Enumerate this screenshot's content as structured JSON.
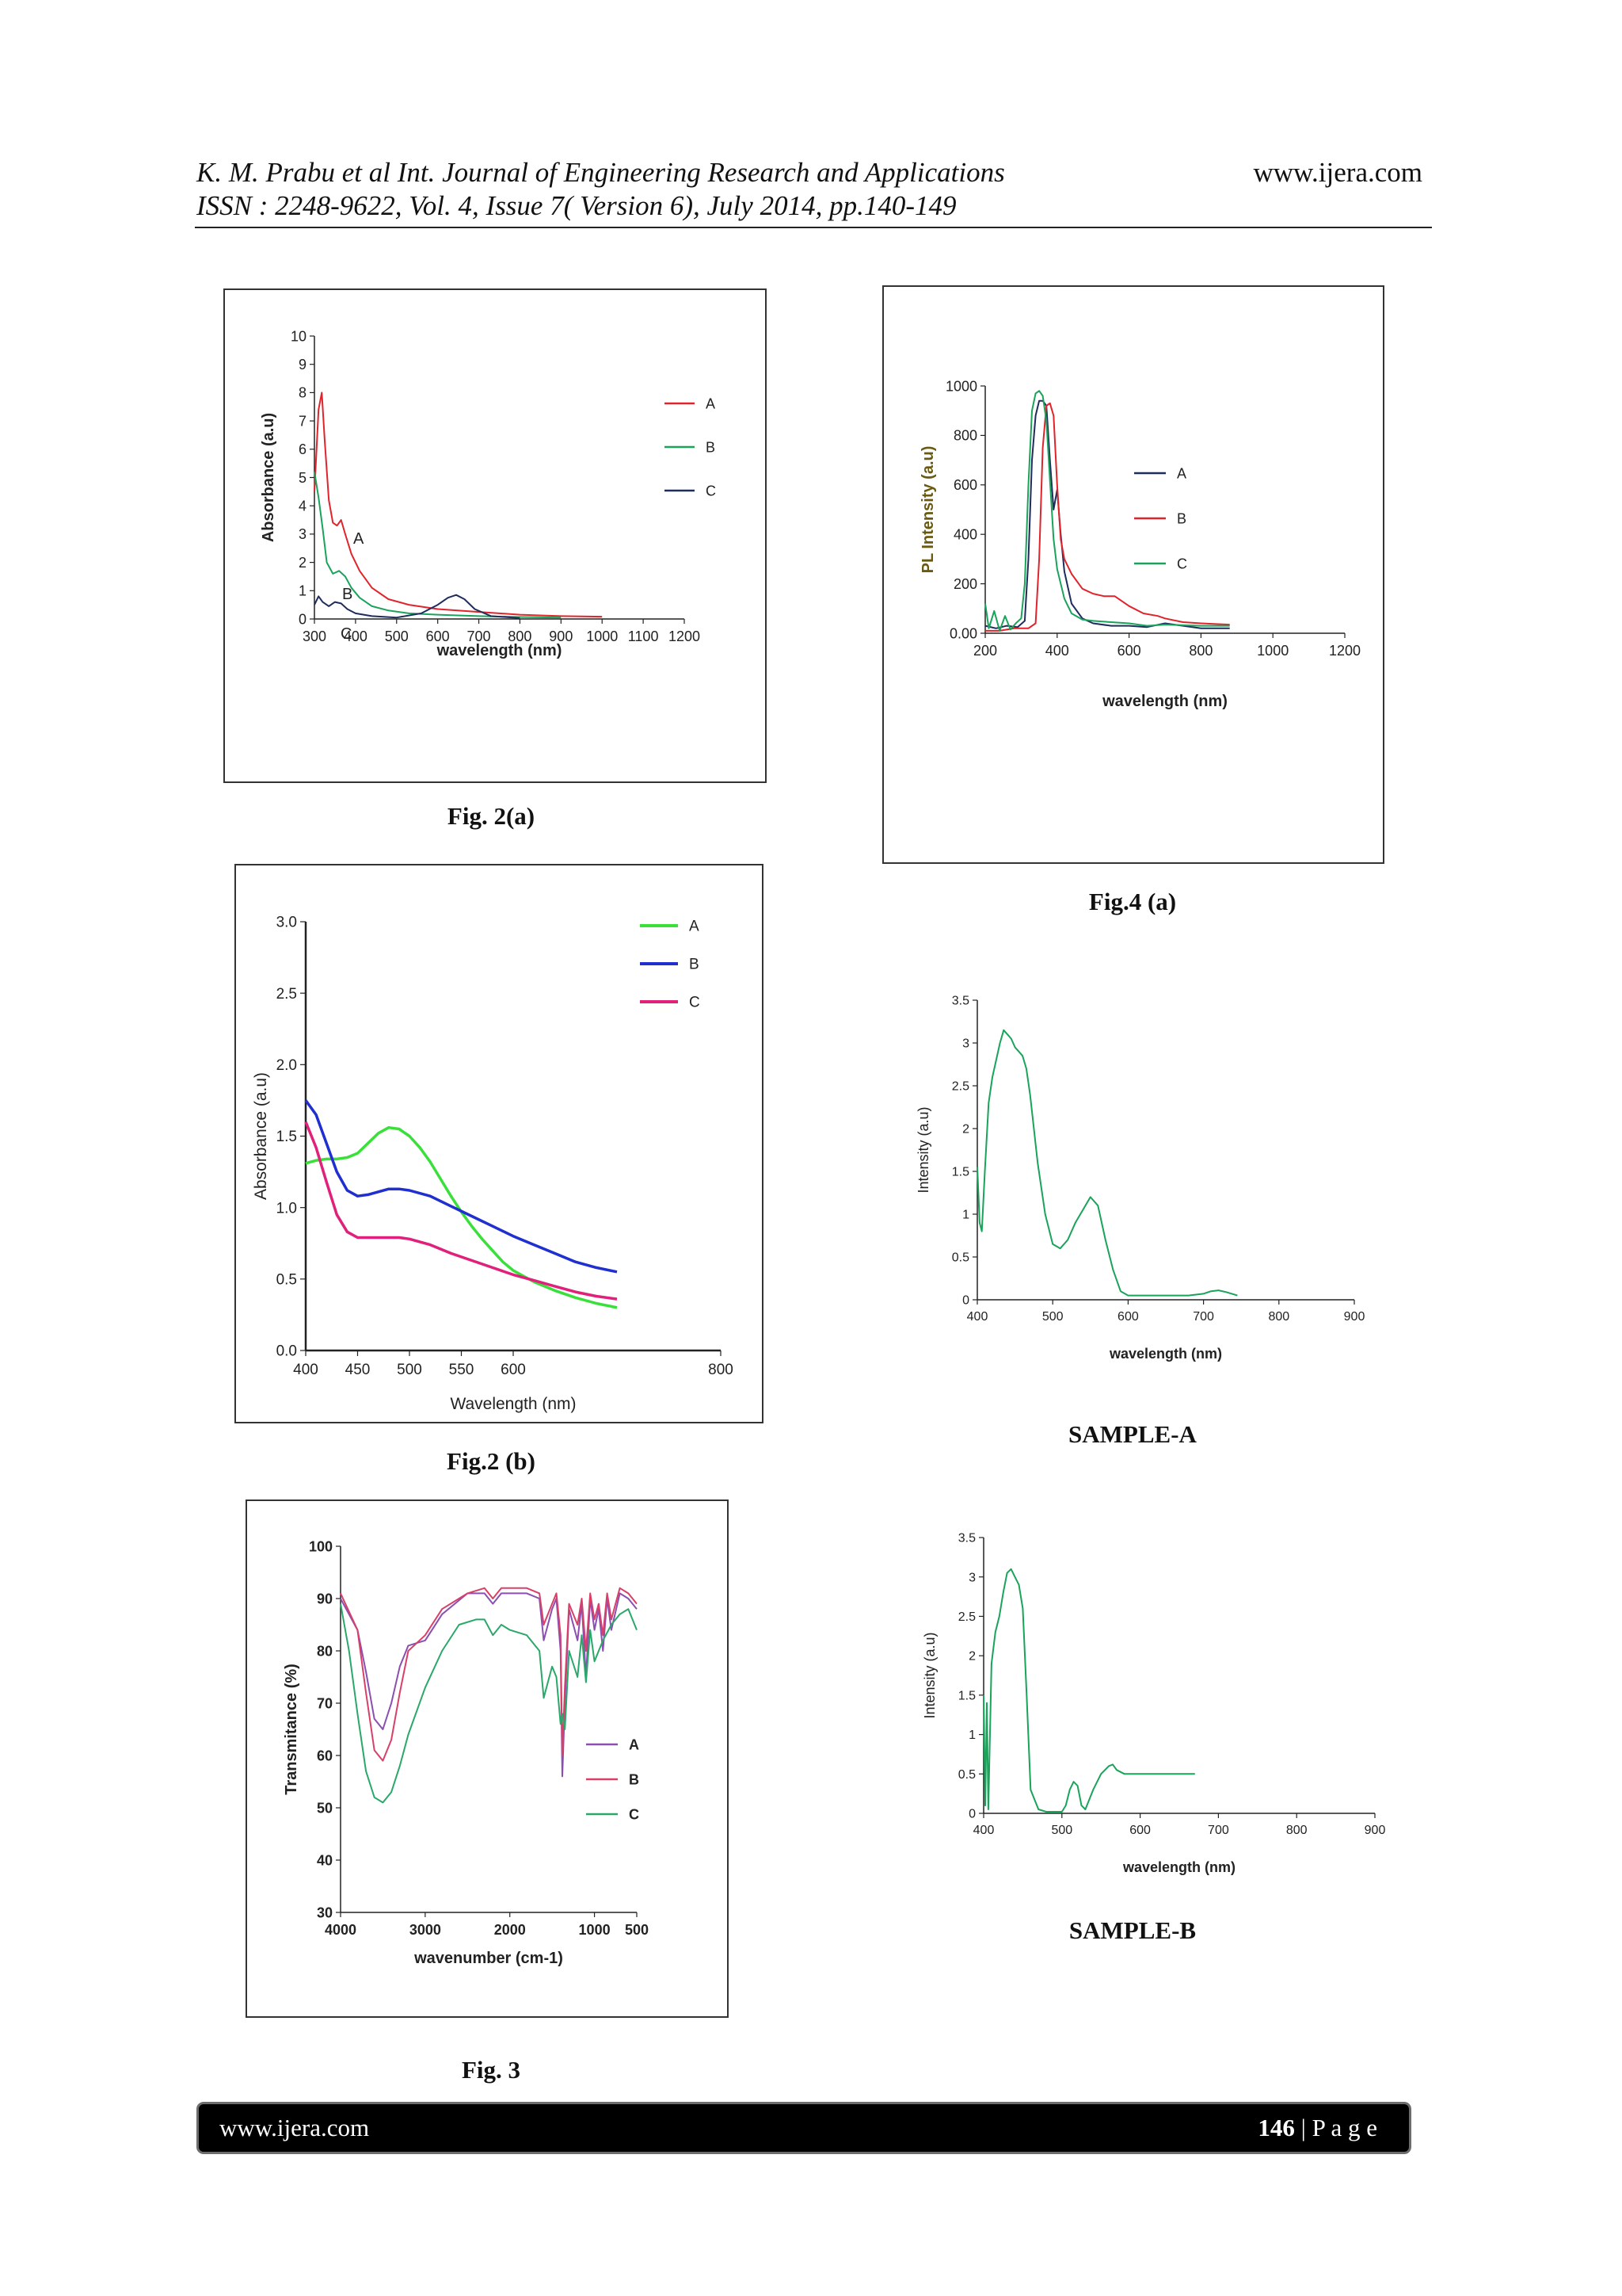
{
  "header": {
    "line1": "K. M. Prabu et al Int. Journal of Engineering Research and Applications",
    "line2": "ISSN : 2248-9622, Vol. 4, Issue 7( Version 6), July 2014, pp.140-149",
    "url": "www.ijera.com"
  },
  "footer": {
    "url": "www.ijera.com",
    "page_number": "146",
    "page_label": " | P a g e"
  },
  "captions": {
    "fig2a": "Fig. 2(a)",
    "fig2b": "Fig.2 (b)",
    "fig3": "Fig. 3",
    "fig4a": "Fig.4 (a)",
    "sampleA": "SAMPLE-A",
    "sampleB": "SAMPLE-B"
  },
  "colors": {
    "red": "#e0242b",
    "green": "#1aa35a",
    "navy": "#1f2d5c",
    "lime": "#39e03a",
    "blue": "#1f2fd0",
    "pink": "#e0207a",
    "purple": "#8a4fb0",
    "rose": "#d8406a",
    "teal": "#2aa86a"
  },
  "chart_data": [
    {
      "id": "fig2a",
      "type": "line",
      "xlabel": "wavelength (nm)",
      "ylabel": "Absorbance (a.u)",
      "xlim": [
        300,
        1200
      ],
      "ylim": [
        0,
        10
      ],
      "xticks": [
        300,
        400,
        500,
        600,
        700,
        800,
        900,
        1000,
        1100,
        1200
      ],
      "yticks": [
        0,
        1,
        2,
        3,
        4,
        5,
        6,
        7,
        8,
        9,
        10
      ],
      "legend_position": "top-right",
      "annotations": [
        "A",
        "B",
        "C"
      ],
      "series": [
        {
          "name": "A",
          "color": "#e0242b",
          "x": [
            300,
            310,
            318,
            325,
            335,
            345,
            355,
            365,
            375,
            390,
            410,
            440,
            480,
            530,
            600,
            700,
            800,
            900,
            1000
          ],
          "y": [
            4.5,
            7.4,
            8.0,
            6.3,
            4.2,
            3.4,
            3.3,
            3.5,
            3.0,
            2.3,
            1.7,
            1.1,
            0.7,
            0.5,
            0.35,
            0.25,
            0.15,
            0.1,
            0.08
          ]
        },
        {
          "name": "B",
          "color": "#1aa35a",
          "x": [
            300,
            310,
            320,
            330,
            345,
            360,
            375,
            390,
            410,
            440,
            480,
            530,
            600,
            700,
            800,
            900
          ],
          "y": [
            5.2,
            4.3,
            3.2,
            2.0,
            1.6,
            1.7,
            1.5,
            1.1,
            0.75,
            0.45,
            0.3,
            0.2,
            0.15,
            0.1,
            0.07,
            0.05
          ]
        },
        {
          "name": "C",
          "color": "#1f2d5c",
          "x": [
            300,
            310,
            320,
            335,
            350,
            365,
            380,
            400,
            440,
            500,
            560,
            600,
            625,
            645,
            665,
            690,
            730,
            800
          ],
          "y": [
            0.5,
            0.8,
            0.6,
            0.45,
            0.6,
            0.55,
            0.35,
            0.2,
            0.1,
            0.05,
            0.2,
            0.5,
            0.75,
            0.85,
            0.7,
            0.35,
            0.1,
            0.03
          ]
        }
      ]
    },
    {
      "id": "fig2b",
      "type": "line",
      "xlabel": "Wavelength (nm)",
      "ylabel": "Absorbance (a.u)",
      "xlim": [
        400,
        800
      ],
      "ylim": [
        0.0,
        3.0
      ],
      "xticks": [
        400,
        450,
        500,
        550,
        600,
        800
      ],
      "yticks": [
        "0.0",
        "0.5",
        "1.0",
        "1.5",
        "2.0",
        "2.5",
        "3.0"
      ],
      "legend_position": "top-right",
      "series": [
        {
          "name": "A",
          "color": "#39e03a",
          "x": [
            400,
            410,
            420,
            430,
            440,
            450,
            460,
            470,
            480,
            490,
            500,
            510,
            520,
            530,
            540,
            550,
            560,
            570,
            580,
            590,
            600,
            620,
            640,
            660,
            680,
            700
          ],
          "y": [
            1.31,
            1.33,
            1.34,
            1.34,
            1.35,
            1.38,
            1.45,
            1.52,
            1.56,
            1.55,
            1.5,
            1.42,
            1.32,
            1.2,
            1.08,
            0.97,
            0.87,
            0.78,
            0.7,
            0.62,
            0.56,
            0.48,
            0.42,
            0.37,
            0.33,
            0.3
          ]
        },
        {
          "name": "B",
          "color": "#1f2fd0",
          "x": [
            400,
            410,
            420,
            430,
            440,
            450,
            460,
            470,
            480,
            490,
            500,
            520,
            540,
            560,
            580,
            600,
            620,
            640,
            660,
            680,
            700
          ],
          "y": [
            1.75,
            1.65,
            1.45,
            1.25,
            1.12,
            1.08,
            1.09,
            1.11,
            1.13,
            1.13,
            1.12,
            1.08,
            1.01,
            0.94,
            0.87,
            0.8,
            0.74,
            0.68,
            0.62,
            0.58,
            0.55
          ]
        },
        {
          "name": "C",
          "color": "#e0207a",
          "x": [
            400,
            410,
            420,
            430,
            440,
            450,
            460,
            470,
            480,
            490,
            500,
            520,
            540,
            560,
            580,
            600,
            620,
            640,
            660,
            680,
            700
          ],
          "y": [
            1.6,
            1.42,
            1.18,
            0.95,
            0.83,
            0.79,
            0.79,
            0.79,
            0.79,
            0.79,
            0.78,
            0.74,
            0.68,
            0.63,
            0.58,
            0.53,
            0.49,
            0.45,
            0.41,
            0.38,
            0.36
          ]
        }
      ]
    },
    {
      "id": "fig3",
      "type": "line",
      "xlabel": "wavenumber (cm-1)",
      "ylabel": "Transmitance (%)",
      "xlim": [
        4000,
        500
      ],
      "ylim": [
        30,
        100
      ],
      "xticks": [
        4000,
        3000,
        2000,
        1000,
        500
      ],
      "yticks": [
        30,
        40,
        50,
        60,
        70,
        80,
        90,
        100
      ],
      "legend_position": "center-right",
      "series": [
        {
          "name": "A",
          "color": "#8a4fb0",
          "x": [
            4000,
            3800,
            3700,
            3600,
            3500,
            3400,
            3300,
            3200,
            3000,
            2800,
            2500,
            2300,
            2200,
            2100,
            2000,
            1800,
            1650,
            1600,
            1500,
            1450,
            1400,
            1380,
            1350,
            1300,
            1200,
            1150,
            1100,
            1050,
            1000,
            950,
            900,
            850,
            800,
            700,
            600,
            500
          ],
          "y": [
            90,
            84,
            76,
            67,
            65,
            70,
            77,
            81,
            82,
            87,
            91,
            91,
            89,
            91,
            91,
            91,
            90,
            82,
            88,
            90,
            80,
            56,
            70,
            88,
            82,
            89,
            75,
            90,
            84,
            88,
            80,
            90,
            84,
            91,
            90,
            88
          ]
        },
        {
          "name": "B",
          "color": "#d8406a",
          "x": [
            4000,
            3800,
            3700,
            3600,
            3500,
            3400,
            3300,
            3200,
            3000,
            2800,
            2500,
            2300,
            2200,
            2100,
            2000,
            1800,
            1650,
            1600,
            1500,
            1450,
            1400,
            1380,
            1350,
            1300,
            1200,
            1150,
            1100,
            1050,
            1000,
            950,
            900,
            850,
            800,
            700,
            600,
            500
          ],
          "y": [
            91,
            84,
            72,
            61,
            59,
            63,
            72,
            80,
            83,
            88,
            91,
            92,
            90,
            92,
            92,
            92,
            91,
            85,
            89,
            91,
            83,
            60,
            73,
            89,
            85,
            90,
            80,
            91,
            86,
            89,
            83,
            91,
            86,
            92,
            91,
            89
          ]
        },
        {
          "name": "C",
          "color": "#2aa86a",
          "x": [
            4000,
            3900,
            3800,
            3700,
            3600,
            3500,
            3400,
            3300,
            3200,
            3000,
            2800,
            2600,
            2400,
            2300,
            2200,
            2100,
            2000,
            1800,
            1650,
            1600,
            1500,
            1450,
            1400,
            1380,
            1350,
            1300,
            1200,
            1150,
            1100,
            1050,
            1000,
            900,
            800,
            700,
            600,
            500
          ],
          "y": [
            89,
            80,
            68,
            57,
            52,
            51,
            53,
            58,
            64,
            73,
            80,
            85,
            86,
            86,
            83,
            85,
            84,
            83,
            80,
            71,
            77,
            75,
            66,
            68,
            65,
            80,
            75,
            83,
            74,
            84,
            78,
            82,
            85,
            87,
            88,
            84
          ]
        }
      ]
    },
    {
      "id": "fig4a",
      "type": "line",
      "xlabel": "wavelength (nm)",
      "ylabel": "PL Intensity (a.u)",
      "xlim": [
        200,
        1200
      ],
      "ylim": [
        0,
        1000
      ],
      "xticks": [
        200,
        400,
        600,
        800,
        1000,
        1200
      ],
      "yticks": [
        "0.00",
        "200",
        "400",
        "600",
        "800",
        "1000"
      ],
      "legend_position": "center-right",
      "series": [
        {
          "name": "A",
          "color": "#1f2d5c",
          "x": [
            200,
            230,
            260,
            290,
            310,
            320,
            330,
            340,
            350,
            360,
            370,
            380,
            390,
            400,
            410,
            420,
            440,
            470,
            500,
            550,
            600,
            650,
            700,
            800,
            880
          ],
          "y": [
            30,
            20,
            30,
            25,
            50,
            300,
            700,
            880,
            940,
            940,
            920,
            700,
            500,
            580,
            400,
            250,
            120,
            60,
            40,
            30,
            30,
            25,
            40,
            20,
            20
          ]
        },
        {
          "name": "B",
          "color": "#e0242b",
          "x": [
            200,
            240,
            280,
            320,
            340,
            350,
            360,
            370,
            380,
            390,
            400,
            410,
            420,
            440,
            470,
            500,
            530,
            560,
            600,
            640,
            680,
            700,
            750,
            800,
            880
          ],
          "y": [
            10,
            10,
            20,
            20,
            40,
            300,
            750,
            920,
            930,
            880,
            600,
            380,
            300,
            240,
            180,
            160,
            150,
            150,
            110,
            80,
            70,
            60,
            45,
            40,
            35
          ]
        },
        {
          "name": "C",
          "color": "#1aa35a",
          "x": [
            200,
            210,
            225,
            240,
            255,
            270,
            285,
            300,
            310,
            320,
            330,
            340,
            350,
            360,
            370,
            380,
            390,
            400,
            420,
            440,
            470,
            500,
            550,
            600,
            650,
            700,
            800,
            880
          ],
          "y": [
            120,
            20,
            90,
            10,
            70,
            15,
            40,
            60,
            200,
            600,
            900,
            970,
            980,
            960,
            860,
            620,
            380,
            260,
            140,
            80,
            55,
            50,
            45,
            40,
            30,
            35,
            30,
            30
          ]
        }
      ]
    },
    {
      "id": "sampleA",
      "type": "line",
      "xlabel": "wavelength (nm)",
      "ylabel": "Intensity (a.u)",
      "xlim": [
        400,
        900
      ],
      "ylim": [
        0,
        3.5
      ],
      "xticks": [
        400,
        500,
        600,
        700,
        800,
        900
      ],
      "yticks": [
        "0",
        "0.5",
        "1",
        "1.5",
        "2",
        "2.5",
        "3",
        "3.5"
      ],
      "series": [
        {
          "name": "",
          "color": "#1aa35a",
          "x": [
            400,
            403,
            406,
            410,
            415,
            420,
            425,
            430,
            435,
            440,
            445,
            450,
            455,
            460,
            465,
            470,
            480,
            490,
            500,
            510,
            520,
            530,
            540,
            550,
            560,
            570,
            580,
            590,
            600,
            620,
            650,
            680,
            700,
            710,
            720,
            730,
            745
          ],
          "y": [
            1.55,
            0.9,
            0.8,
            1.5,
            2.3,
            2.6,
            2.8,
            3.0,
            3.15,
            3.1,
            3.05,
            2.95,
            2.9,
            2.85,
            2.7,
            2.4,
            1.6,
            1.0,
            0.65,
            0.6,
            0.7,
            0.9,
            1.05,
            1.2,
            1.1,
            0.7,
            0.35,
            0.1,
            0.05,
            0.05,
            0.05,
            0.05,
            0.07,
            0.1,
            0.11,
            0.09,
            0.05
          ]
        }
      ]
    },
    {
      "id": "sampleB",
      "type": "line",
      "xlabel": "wavelength (nm)",
      "ylabel": "Intensity (a.u)",
      "xlim": [
        400,
        900
      ],
      "ylim": [
        0,
        3.5
      ],
      "xticks": [
        400,
        500,
        600,
        700,
        800,
        900
      ],
      "yticks": [
        "0",
        "0.5",
        "1",
        "1.5",
        "2",
        "2.5",
        "3",
        "3.5"
      ],
      "series": [
        {
          "name": "",
          "color": "#1aa35a",
          "x": [
            400,
            402,
            404,
            406,
            410,
            415,
            420,
            425,
            430,
            435,
            440,
            445,
            450,
            455,
            460,
            470,
            480,
            490,
            500,
            505,
            510,
            515,
            520,
            525,
            530,
            540,
            550,
            560,
            565,
            570,
            580,
            600,
            640,
            670
          ],
          "y": [
            1.5,
            0.1,
            1.4,
            0.05,
            1.9,
            2.3,
            2.5,
            2.8,
            3.05,
            3.1,
            3.0,
            2.9,
            2.6,
            1.5,
            0.3,
            0.05,
            0.02,
            0.02,
            0.02,
            0.1,
            0.3,
            0.4,
            0.35,
            0.1,
            0.05,
            0.3,
            0.5,
            0.6,
            0.62,
            0.55,
            0.5,
            0.5,
            0.5,
            0.5
          ]
        }
      ]
    }
  ]
}
